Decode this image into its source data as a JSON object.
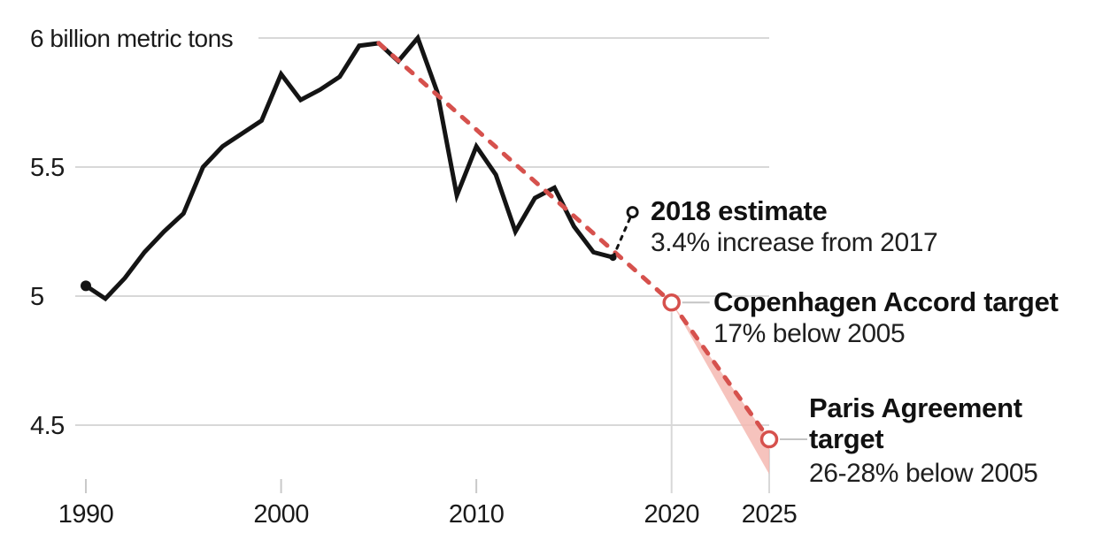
{
  "chart_data": {
    "type": "line",
    "title": "",
    "unit_label": "6 billion metric tons",
    "xlabel": "",
    "ylabel": "billion metric tons",
    "axis_ranges": {
      "x": [
        1990,
        2025
      ],
      "y": [
        4.3,
        6.05
      ]
    },
    "grid": "horizontal-only",
    "y_ticks": [
      {
        "value": 6.0,
        "label": "6 billion metric tons"
      },
      {
        "value": 5.5,
        "label": "5.5"
      },
      {
        "value": 5.0,
        "label": "5"
      },
      {
        "value": 4.5,
        "label": "4.5"
      }
    ],
    "x_ticks": [
      {
        "year": 1990,
        "label": "1990"
      },
      {
        "year": 2000,
        "label": "2000"
      },
      {
        "year": 2010,
        "label": "2010"
      },
      {
        "year": 2020,
        "label": "2020"
      },
      {
        "year": 2025,
        "label": "2025"
      }
    ],
    "series": [
      {
        "name": "historical-emissions",
        "style": "solid",
        "color": "#141414",
        "width": 5,
        "points": [
          [
            1990,
            5.04
          ],
          [
            1991,
            4.99
          ],
          [
            1992,
            5.07
          ],
          [
            1993,
            5.17
          ],
          [
            1994,
            5.25
          ],
          [
            1995,
            5.32
          ],
          [
            1996,
            5.5
          ],
          [
            1997,
            5.58
          ],
          [
            1998,
            5.63
          ],
          [
            1999,
            5.68
          ],
          [
            2000,
            5.86
          ],
          [
            2001,
            5.76
          ],
          [
            2002,
            5.8
          ],
          [
            2003,
            5.85
          ],
          [
            2004,
            5.97
          ],
          [
            2005,
            5.98
          ],
          [
            2006,
            5.91
          ],
          [
            2007,
            6.0
          ],
          [
            2008,
            5.79
          ],
          [
            2009,
            5.39
          ],
          [
            2010,
            5.58
          ],
          [
            2011,
            5.47
          ],
          [
            2012,
            5.25
          ],
          [
            2013,
            5.38
          ],
          [
            2014,
            5.42
          ],
          [
            2015,
            5.27
          ],
          [
            2016,
            5.17
          ],
          [
            2017,
            5.15
          ]
        ]
      },
      {
        "name": "target-path",
        "style": "dashed",
        "color": "#d6514d",
        "width": 5,
        "points": [
          [
            2005,
            5.98
          ],
          [
            2020,
            4.975
          ],
          [
            2025,
            4.445
          ]
        ]
      },
      {
        "name": "estimate-connector",
        "style": "dashed",
        "color": "#141414",
        "width": 3,
        "points": [
          [
            2017,
            5.15
          ],
          [
            2018,
            5.325
          ]
        ]
      }
    ],
    "band": {
      "name": "paris-target-range",
      "color": "#f4b9b1",
      "opacity": 0.85,
      "points": [
        [
          2020,
          4.975
        ],
        [
          2025,
          4.445
        ],
        [
          2025,
          4.31
        ]
      ]
    },
    "markers": [
      {
        "name": "series-start-dot",
        "year": 1990,
        "value": 5.04,
        "style": "filled-dot",
        "color": "#141414",
        "r": 6
      },
      {
        "name": "series-end-dot",
        "year": 2017,
        "value": 5.15,
        "style": "filled-dot",
        "color": "#141414",
        "r": 4
      },
      {
        "name": "estimate-circle",
        "year": 2018,
        "value": 5.325,
        "style": "open-circle",
        "color": "#141414",
        "r": 5.5,
        "stroke": 3
      },
      {
        "name": "copenhagen-circle",
        "year": 2020,
        "value": 4.975,
        "style": "open-circle",
        "color": "#d6514d",
        "r": 8.5,
        "stroke": 3.5,
        "guide": true,
        "connector": true
      },
      {
        "name": "paris-circle",
        "year": 2025,
        "value": 4.445,
        "style": "open-circle",
        "color": "#d6514d",
        "r": 8.5,
        "stroke": 3.5,
        "guide": true,
        "connector": true
      }
    ],
    "annotations": [
      {
        "title": "2018 estimate",
        "subtitle": "3.4% increase from 2017"
      },
      {
        "title": "Copenhagen Accord target",
        "subtitle": "17% below 2005"
      },
      {
        "title": "Paris Agreement target",
        "subtitle": "26-28% below 2005"
      }
    ],
    "colors": {
      "line": "#141414",
      "target": "#d6514d",
      "band": "#f4b9b1",
      "grid": "#d8d8d8",
      "tick": "#c9c9c9",
      "label_connector": "#c4c4c4",
      "text": "#1a1a1a"
    }
  }
}
